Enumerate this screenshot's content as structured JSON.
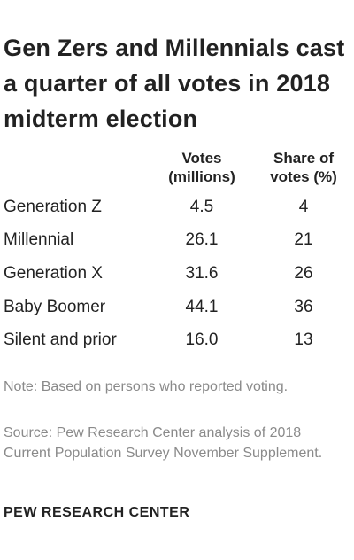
{
  "title": "Gen Zers and Millennials cast a quarter of all votes in 2018 midterm election",
  "chart_data": {
    "type": "table",
    "columns": [
      "Votes (millions)",
      "Share of votes (%)"
    ],
    "rows": [
      {
        "label": "Generation Z",
        "votes": "4.5",
        "share": "4"
      },
      {
        "label": "Millennial",
        "votes": "26.1",
        "share": "21"
      },
      {
        "label": "Generation X",
        "votes": "31.6",
        "share": "26"
      },
      {
        "label": "Baby Boomer",
        "votes": "44.1",
        "share": "36"
      },
      {
        "label": "Silent and prior",
        "votes": "16.0",
        "share": "13"
      }
    ]
  },
  "headers": {
    "votes_line1": "Votes",
    "votes_line2": "(millions)",
    "share_line1": "Share of",
    "share_line2": "votes (%)"
  },
  "note": "Note: Based on persons who reported voting.",
  "source": "Source: Pew Research Center analysis of 2018 Current Population Survey November Supplement.",
  "brand": "PEW RESEARCH CENTER"
}
